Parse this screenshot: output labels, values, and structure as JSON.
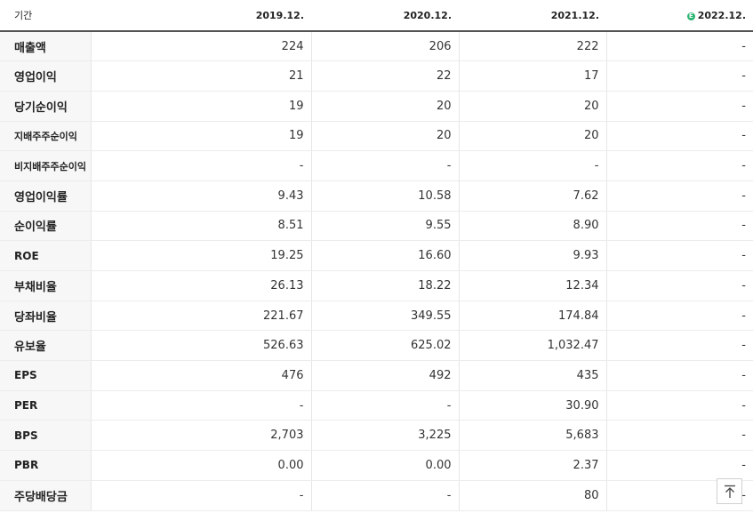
{
  "header": {
    "period_label": "기간",
    "years": [
      "2019.12.",
      "2020.12.",
      "2021.12.",
      "2022.12."
    ],
    "estimate_badge": "E"
  },
  "rows": [
    {
      "label": "매출액",
      "values": [
        "224",
        "206",
        "222",
        "-"
      ]
    },
    {
      "label": "영업이익",
      "values": [
        "21",
        "22",
        "17",
        "-"
      ]
    },
    {
      "label": "당기순이익",
      "values": [
        "19",
        "20",
        "20",
        "-"
      ]
    },
    {
      "label": "지배주주순이익",
      "values": [
        "19",
        "20",
        "20",
        "-"
      ]
    },
    {
      "label": "비지배주주순이익",
      "values": [
        "-",
        "-",
        "-",
        "-"
      ]
    },
    {
      "label": "영업이익률",
      "values": [
        "9.43",
        "10.58",
        "7.62",
        "-"
      ]
    },
    {
      "label": "순이익률",
      "values": [
        "8.51",
        "9.55",
        "8.90",
        "-"
      ]
    },
    {
      "label": "ROE",
      "values": [
        "19.25",
        "16.60",
        "9.93",
        "-"
      ]
    },
    {
      "label": "부채비율",
      "values": [
        "26.13",
        "18.22",
        "12.34",
        "-"
      ]
    },
    {
      "label": "당좌비율",
      "values": [
        "221.67",
        "349.55",
        "174.84",
        "-"
      ]
    },
    {
      "label": "유보율",
      "values": [
        "526.63",
        "625.02",
        "1,032.47",
        "-"
      ]
    },
    {
      "label": "EPS",
      "values": [
        "476",
        "492",
        "435",
        "-"
      ]
    },
    {
      "label": "PER",
      "values": [
        "-",
        "-",
        "30.90",
        "-"
      ]
    },
    {
      "label": "BPS",
      "values": [
        "2,703",
        "3,225",
        "5,683",
        "-"
      ]
    },
    {
      "label": "PBR",
      "values": [
        "0.00",
        "0.00",
        "2.37",
        "-"
      ]
    },
    {
      "label": "주당배당금",
      "values": [
        "-",
        "-",
        "80",
        "-"
      ]
    }
  ],
  "scroll_top_icon": "arrow-up-to-top-icon",
  "colors": {
    "estimate_badge": "#2bb673",
    "header_rule": "#555555",
    "label_background": "#f7f7f7"
  }
}
